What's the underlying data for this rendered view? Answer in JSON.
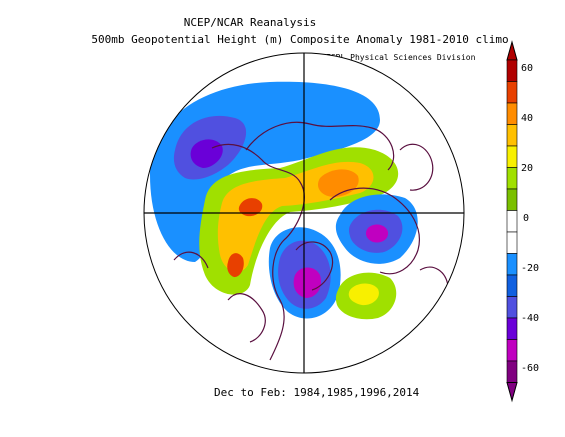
{
  "header": {
    "title": "NCEP/NCAR Reanalysis",
    "subtitle": "500mb Geopotential Height (m) Composite Anomaly 1981-2010 climo",
    "credit": "NOAA/ESRL Physical Sciences Division"
  },
  "footer": {
    "period": "Dec to Feb: 1984,1985,1996,2014"
  },
  "colorbar": {
    "labels": [
      "60",
      "40",
      "20",
      "0",
      "-20",
      "-40",
      "-60"
    ],
    "colors": [
      "#b00000",
      "#e84000",
      "#ff8c00",
      "#ffc000",
      "#f8f000",
      "#a0e000",
      "#7ac000",
      "#ffffff",
      "#ffffff",
      "#1a90ff",
      "#1060e0",
      "#5050e0",
      "#6a00d8",
      "#c000c0",
      "#800080"
    ]
  },
  "map": {
    "projection": "north-polar-stereographic",
    "anomalies": [
      {
        "region": "Alaska / Gulf of Alaska",
        "sign": "negative"
      },
      {
        "region": "Eastern Canada / Great Lakes",
        "sign": "negative"
      },
      {
        "region": "Europe / Scandinavia",
        "sign": "negative"
      },
      {
        "region": "Siberia",
        "sign": "positive"
      },
      {
        "region": "North Pacific",
        "sign": "positive"
      },
      {
        "region": "North Atlantic",
        "sign": "positive"
      }
    ]
  }
}
